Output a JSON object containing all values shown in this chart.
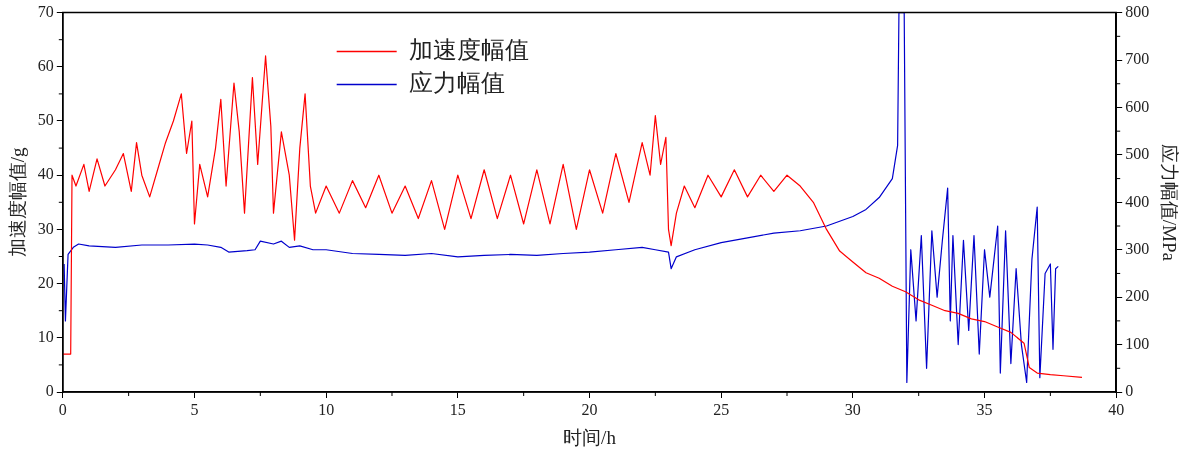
{
  "chart_data": {
    "type": "line",
    "xlabel": "时间/h",
    "ylabel": "加速度幅值/g",
    "y2label": "应力幅值/MPa",
    "xlim": [
      0,
      40
    ],
    "xticks": [
      0,
      5,
      10,
      15,
      20,
      25,
      30,
      35,
      40
    ],
    "ylim": [
      0,
      70
    ],
    "yticks": [
      0,
      10,
      20,
      30,
      40,
      50,
      60,
      70
    ],
    "y2lim": [
      0,
      800
    ],
    "y2ticks": [
      0,
      100,
      200,
      300,
      400,
      500,
      600,
      700,
      800
    ],
    "grid": false,
    "legend": "top",
    "marker": "none",
    "line_style": "solid",
    "series": [
      {
        "name": "加速度幅值",
        "color": "#ff0000",
        "x": [
          0,
          0.3,
          0.35,
          0.5,
          0.8,
          1.0,
          1.3,
          1.6,
          2.0,
          2.3,
          2.6,
          2.8,
          3.0,
          3.3,
          3.6,
          3.9,
          4.2,
          4.5,
          4.7,
          4.9,
          5.0,
          5.2,
          5.5,
          5.8,
          6.0,
          6.2,
          6.5,
          6.7,
          6.9,
          7.2,
          7.4,
          7.7,
          7.9,
          8.0,
          8.3,
          8.6,
          8.8,
          9.0,
          9.2,
          9.4,
          9.6,
          10,
          10.5,
          11,
          11.5,
          12,
          12.5,
          13,
          13.5,
          14,
          14.5,
          15,
          15.5,
          16,
          16.5,
          17,
          17.5,
          18,
          18.5,
          19,
          19.5,
          20,
          20.5,
          21,
          21.5,
          22,
          22.3,
          22.5,
          22.7,
          22.9,
          23.0,
          23.1,
          23.3,
          23.6,
          24,
          24.5,
          25,
          25.5,
          26,
          26.5,
          27,
          27.5,
          28,
          28.5,
          29,
          29.5,
          30,
          30.5,
          31,
          31.5,
          32,
          32.5,
          33,
          33.5,
          34,
          34.5,
          35,
          35.5,
          36,
          36.5,
          36.7,
          37,
          37.5,
          38,
          38.7
        ],
        "values": [
          7,
          7,
          40,
          38,
          42,
          37,
          43,
          38,
          41,
          44,
          37,
          46,
          40,
          36,
          41,
          46,
          50,
          55,
          44,
          50,
          31,
          42,
          36,
          45,
          54,
          38,
          57,
          48,
          33,
          58,
          42,
          62,
          49,
          33,
          48,
          40,
          28,
          45,
          55,
          38,
          33,
          38,
          33,
          39,
          34,
          40,
          33,
          38,
          32,
          39,
          30,
          40,
          32,
          41,
          32,
          40,
          31,
          41,
          31,
          42,
          30,
          41,
          33,
          44,
          35,
          46,
          40,
          51,
          42,
          47,
          30,
          27,
          33,
          38,
          34,
          40,
          36,
          41,
          36,
          40,
          37,
          40,
          38,
          35,
          30,
          26,
          24,
          22,
          21,
          19.5,
          18.5,
          17,
          16,
          15,
          14.5,
          13.5,
          13,
          12,
          11,
          9,
          4.5,
          3.5,
          3.2,
          3,
          2.7
        ]
      },
      {
        "name": "应力幅值",
        "color": "#0000cc",
        "axis": "y2",
        "x": [
          0.05,
          0.1,
          0.2,
          0.4,
          0.6,
          1,
          2,
          3,
          4,
          5,
          5.5,
          6,
          6.3,
          7,
          7.3,
          7.5,
          8,
          8.3,
          8.6,
          9,
          9.5,
          10,
          11,
          12,
          13,
          14,
          15,
          16,
          17,
          18,
          19,
          20,
          21,
          22,
          22.5,
          23,
          23.1,
          23.3,
          24,
          25,
          26,
          27,
          28,
          29,
          30,
          30.5,
          31,
          31.5,
          31.7,
          31.75,
          31.85,
          31.95,
          32.05,
          32.2,
          32.4,
          32.6,
          32.8,
          33,
          33.2,
          33.4,
          33.6,
          33.7,
          33.8,
          34,
          34.2,
          34.4,
          34.6,
          34.8,
          35,
          35.2,
          35.5,
          35.6,
          35.8,
          36,
          36.2,
          36.4,
          36.6,
          36.8,
          37,
          37.1,
          37.3,
          37.5,
          37.6,
          37.7,
          37.8
        ],
        "values": [
          270,
          150,
          290,
          305,
          312,
          308,
          305,
          310,
          310,
          312,
          310,
          305,
          295,
          298,
          300,
          318,
          312,
          318,
          305,
          308,
          300,
          300,
          292,
          290,
          288,
          292,
          285,
          288,
          290,
          288,
          292,
          295,
          300,
          305,
          300,
          295,
          260,
          285,
          300,
          315,
          325,
          335,
          340,
          350,
          370,
          385,
          410,
          450,
          520,
          800,
          800,
          800,
          20,
          300,
          150,
          330,
          50,
          340,
          200,
          320,
          430,
          150,
          330,
          100,
          320,
          130,
          330,
          80,
          300,
          200,
          350,
          40,
          340,
          60,
          260,
          100,
          20,
          280,
          390,
          30,
          250,
          270,
          90,
          260,
          265
        ]
      }
    ]
  }
}
